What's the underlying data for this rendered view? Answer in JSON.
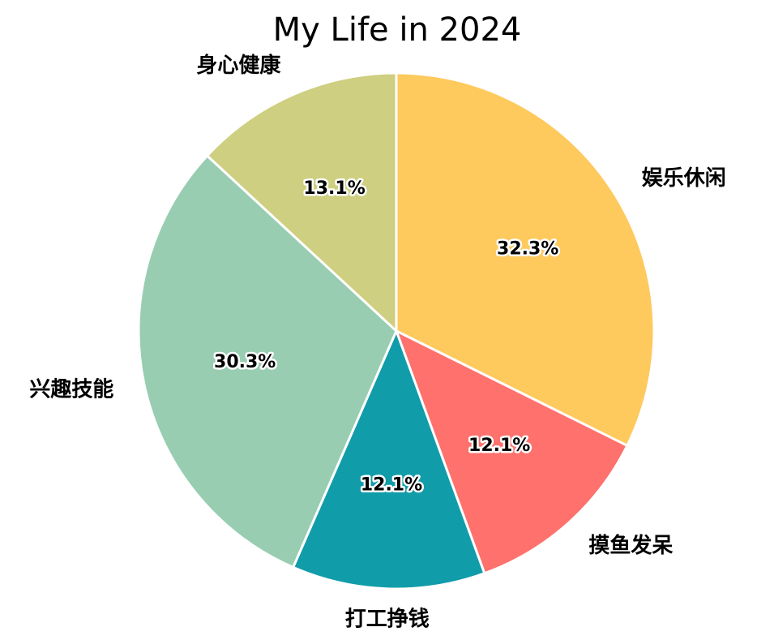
{
  "chart_data": {
    "type": "pie",
    "title": "My Life in 2024",
    "start_angle_deg": 90,
    "direction": "clockwise",
    "slices": [
      {
        "label": "娱乐休闲",
        "value": 32.3,
        "pct_label": "32.3%",
        "color": "#FEC95D"
      },
      {
        "label": "摸鱼发呆",
        "value": 12.1,
        "pct_label": "12.1%",
        "color": "#FE716D"
      },
      {
        "label": "打工挣钱",
        "value": 12.1,
        "pct_label": "12.1%",
        "color": "#119CAA"
      },
      {
        "label": "兴趣技能",
        "value": 30.3,
        "pct_label": "30.3%",
        "color": "#98CDB2"
      },
      {
        "label": "身心健康",
        "value": 13.1,
        "pct_label": "13.1%",
        "color": "#CECF80"
      }
    ]
  }
}
